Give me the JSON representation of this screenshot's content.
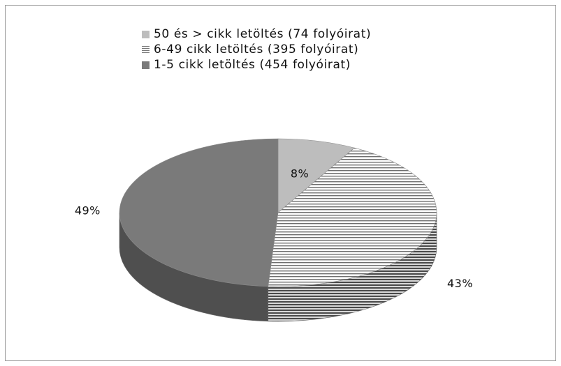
{
  "chart_data": {
    "type": "pie",
    "title": "",
    "legend_position": "top",
    "three_d": true,
    "categories": [
      "50 és > cikk letöltés (74 folyóirat)",
      "6-49 cikk letöltés (395 folyóirat)",
      "1-5 cikk letöltés (454 folyóirat)"
    ],
    "values": [
      8,
      43,
      49
    ],
    "data_labels": [
      "8%",
      "43%",
      "49%"
    ],
    "colors": [
      "#bdbdbd",
      "striped",
      "#7a7a7a"
    ]
  }
}
